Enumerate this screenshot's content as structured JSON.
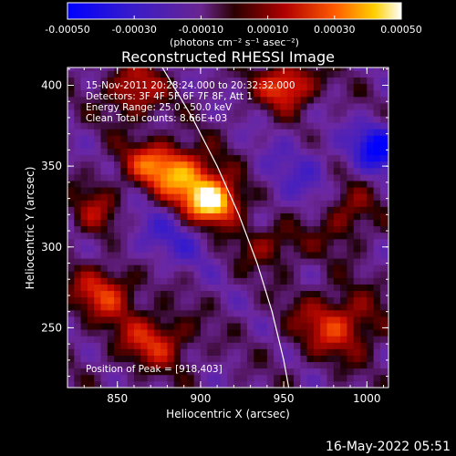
{
  "chart_data": {
    "type": "heatmap",
    "title": "Reconstructed RHESSI Image",
    "xlabel": "Heliocentric X (arcsec)",
    "ylabel": "Heliocentric Y (arcsec)",
    "xlim": [
      820,
      1013
    ],
    "ylim": [
      213,
      411
    ],
    "x_ticks": [
      850,
      900,
      950,
      1000
    ],
    "y_ticks": [
      250,
      300,
      350,
      400
    ],
    "x_tick_labels": [
      "850",
      "900",
      "950",
      "1000"
    ],
    "y_tick_labels": [
      "250",
      "300",
      "350",
      "400"
    ],
    "colorbar": {
      "vmin": -0.0005,
      "vmax": 0.0005,
      "colormap": "blue-purple-red-yellow-white",
      "tick_values": [
        -0.0005,
        -0.0003,
        -0.0001,
        0.0001,
        0.0003,
        0.0005
      ],
      "tick_labels": [
        "-0.00050",
        "-0.00030",
        "-0.00010",
        "0.00010",
        "0.00030",
        "0.00050"
      ],
      "unit_label": "(photons cm⁻² s⁻¹ asec⁻²)"
    },
    "info_lines": [
      "15-Nov-2011 20:28:24.000 to 20:32:32.000",
      "Detectors: 3F 4F 5F 6F 7F 8F, Att 1",
      "Energy Range: 25.0 - 50.0 keV",
      "Clean    Total counts: 8.66E+03"
    ],
    "peak_label": "Position of Peak = [918,403]",
    "peak_position": [
      918,
      403
    ],
    "limb_curve": [
      [
        877,
        411
      ],
      [
        895,
        380
      ],
      [
        910,
        350
      ],
      [
        923,
        320
      ],
      [
        934,
        290
      ],
      [
        943,
        260
      ],
      [
        950,
        230
      ],
      [
        953,
        213
      ]
    ],
    "sources": [
      {
        "x": 906,
        "y": 325,
        "amp": 0.00055,
        "sx": 12,
        "sy": 10
      },
      {
        "x": 890,
        "y": 340,
        "amp": 0.00035,
        "sx": 15,
        "sy": 12
      },
      {
        "x": 870,
        "y": 350,
        "amp": 0.0003,
        "sx": 14,
        "sy": 10
      },
      {
        "x": 950,
        "y": 398,
        "amp": 0.00038,
        "sx": 12,
        "sy": 10
      },
      {
        "x": 858,
        "y": 395,
        "amp": 0.00028,
        "sx": 12,
        "sy": 12
      },
      {
        "x": 840,
        "y": 270,
        "amp": 0.0003,
        "sx": 14,
        "sy": 12
      },
      {
        "x": 870,
        "y": 240,
        "amp": 0.00028,
        "sx": 16,
        "sy": 12
      },
      {
        "x": 980,
        "y": 250,
        "amp": 0.0003,
        "sx": 18,
        "sy": 14
      },
      {
        "x": 985,
        "y": 320,
        "amp": 0.00022,
        "sx": 12,
        "sy": 14
      },
      {
        "x": 940,
        "y": 300,
        "amp": 0.0002,
        "sx": 16,
        "sy": 10
      },
      {
        "x": 835,
        "y": 320,
        "amp": 0.0002,
        "sx": 10,
        "sy": 12
      },
      {
        "x": 1005,
        "y": 360,
        "amp": -0.0004,
        "sx": 10,
        "sy": 10
      },
      {
        "x": 880,
        "y": 305,
        "amp": -0.00015,
        "sx": 22,
        "sy": 14
      },
      {
        "x": 960,
        "y": 340,
        "amp": -0.00012,
        "sx": 22,
        "sy": 18
      }
    ]
  },
  "footer": {
    "date_stamp": "16-May-2022 05:51"
  }
}
